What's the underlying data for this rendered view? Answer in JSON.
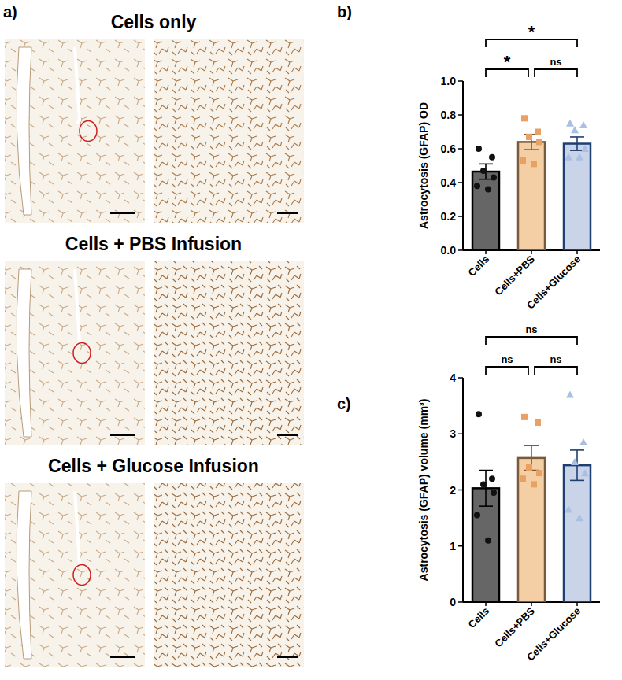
{
  "images": {
    "label": "a)",
    "titles": [
      "Cells only",
      "Cells + PBS Infusion",
      "Cells + Glucose Infusion"
    ]
  },
  "chart_data": [
    {
      "type": "bar",
      "label": "b)",
      "y_label": "Astrocytosis (GFAP) OD",
      "categories": [
        "Cells",
        "Cells+PBS",
        "Cells+Glucose"
      ],
      "values": [
        0.465,
        0.64,
        0.63
      ],
      "errors": [
        0.045,
        0.045,
        0.04
      ],
      "points": [
        [
          0.6,
          0.55,
          0.47,
          0.43,
          0.38,
          0.36
        ],
        [
          0.78,
          0.7,
          0.67,
          0.64,
          0.53,
          0.51
        ],
        [
          0.75,
          0.74,
          0.71,
          0.6,
          0.55,
          0.55
        ]
      ],
      "colors": [
        "#666666",
        "#f4cfa6",
        "#c9d4e8"
      ],
      "ylim": [
        0,
        1.0
      ],
      "yticks": [
        {
          "value": 0,
          "label": "0.0"
        },
        0.2,
        0.4,
        0.6,
        0.8,
        {
          "value": 1.0,
          "label": "1.0"
        }
      ],
      "annotations": [
        {
          "from": 0,
          "to": 1,
          "text": "*"
        },
        {
          "from": 1,
          "to": 2,
          "text": "ns"
        },
        {
          "from": 0,
          "to": 2,
          "text": "*"
        }
      ]
    },
    {
      "type": "bar",
      "label": "c)",
      "y_label": "Astrocytosis (GFAP) volume (mm³)",
      "categories": [
        "Cells",
        "Cells+PBS",
        "Cells+Glucose"
      ],
      "values": [
        2.03,
        2.57,
        2.44
      ],
      "errors": [
        0.32,
        0.22,
        0.27
      ],
      "points": [
        [
          3.35,
          2.2,
          2.1,
          1.95,
          1.55,
          1.1
        ],
        [
          3.3,
          3.2,
          2.4,
          2.3,
          2.2,
          2.1
        ],
        [
          3.7,
          2.85,
          2.5,
          2.3,
          1.65,
          1.5
        ]
      ],
      "colors": [
        "#666666",
        "#f4cfa6",
        "#c9d4e8"
      ],
      "ylim": [
        0,
        4
      ],
      "yticks": [
        0,
        1,
        2,
        3,
        4
      ],
      "annotations": [
        {
          "from": 0,
          "to": 1,
          "text": "ns"
        },
        {
          "from": 1,
          "to": 2,
          "text": "ns"
        },
        {
          "from": 0,
          "to": 2,
          "text": "ns"
        }
      ]
    }
  ]
}
